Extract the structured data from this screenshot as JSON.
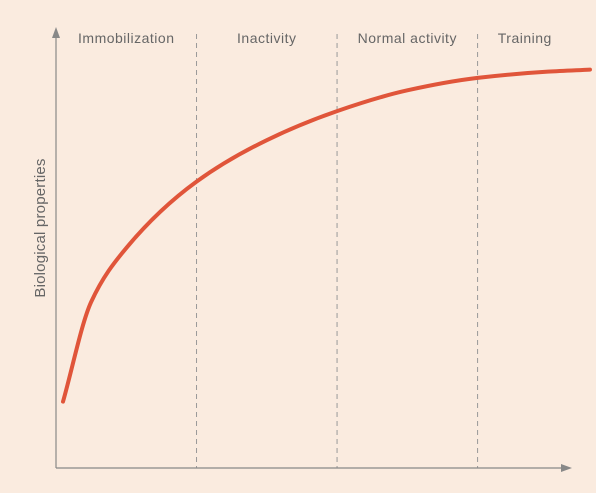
{
  "chart_data": {
    "type": "line",
    "title": "",
    "xlabel": "",
    "ylabel": "Biological properties",
    "zones": [
      "Immobilization",
      "Inactivity",
      "Normal activity",
      "Training"
    ],
    "grid": false,
    "legend": "none",
    "series": [
      {
        "x": [
          0.05,
          0.25,
          0.5,
          1.0,
          1.5,
          2.0,
          2.5,
          3.0,
          3.5,
          3.8
        ],
        "values": [
          0.16,
          0.4,
          0.53,
          0.69,
          0.79,
          0.86,
          0.91,
          0.94,
          0.955,
          0.96
        ]
      }
    ],
    "xlim": [
      0,
      3.8
    ],
    "ylim": [
      0,
      1
    ],
    "colors": {
      "background": "#FAEBDF",
      "curve": "#E0553A",
      "axis": "#888888",
      "divider": "#999999",
      "text": "#666666"
    }
  }
}
